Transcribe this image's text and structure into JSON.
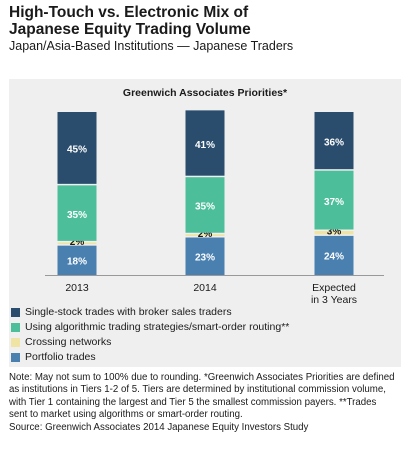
{
  "header": {
    "title_line1": "High-Touch vs. Electronic Mix of",
    "title_line2": "Japanese Equity Trading Volume",
    "subtitle": "Japan/Asia-Based Institutions — Japanese Traders"
  },
  "chart_data": {
    "type": "bar",
    "stacked": true,
    "title": "Greenwich Associates Priorities*",
    "categories": [
      "2013",
      "2014",
      "Expected in 3 Years"
    ],
    "category_lines": [
      [
        "2013"
      ],
      [
        "2014"
      ],
      [
        "Expected",
        "in 3 Years"
      ]
    ],
    "ylim": [
      0,
      100
    ],
    "grid": false,
    "legend_position": "bottom",
    "series": [
      {
        "name": "Portfolio trades",
        "values": [
          18,
          23,
          24
        ],
        "color": "#4a80b0"
      },
      {
        "name": "Crossing networks",
        "values": [
          2,
          2,
          3
        ],
        "color": "#f0e4a4"
      },
      {
        "name": "Using algorithmic trading strategies/smart-order routing**",
        "values": [
          35,
          35,
          37
        ],
        "color": "#4cbf9a"
      },
      {
        "name": "Single-stock trades with broker sales traders",
        "values": [
          45,
          41,
          36
        ],
        "color": "#2a4d6e"
      }
    ],
    "data_labels": [
      [
        "18%",
        "23%",
        "24%"
      ],
      [
        "2%",
        "2%",
        "3%"
      ],
      [
        "35%",
        "35%",
        "37%"
      ],
      [
        "45%",
        "41%",
        "36%"
      ]
    ],
    "legend_order": [
      3,
      2,
      1,
      0
    ]
  },
  "footnote": {
    "note": "Note: May not sum to 100% due to rounding. *Greenwich Associates Priorities are defined as institutions in Tiers 1-2 of 5. Tiers are determined by institutional commission volume, with Tier 1 containing the largest and Tier 5 the smallest commission payers. **Trades sent to market using algorithms or smart-order routing.",
    "source": "Source: Greenwich Associates 2014 Japanese Equity Investors Study"
  }
}
